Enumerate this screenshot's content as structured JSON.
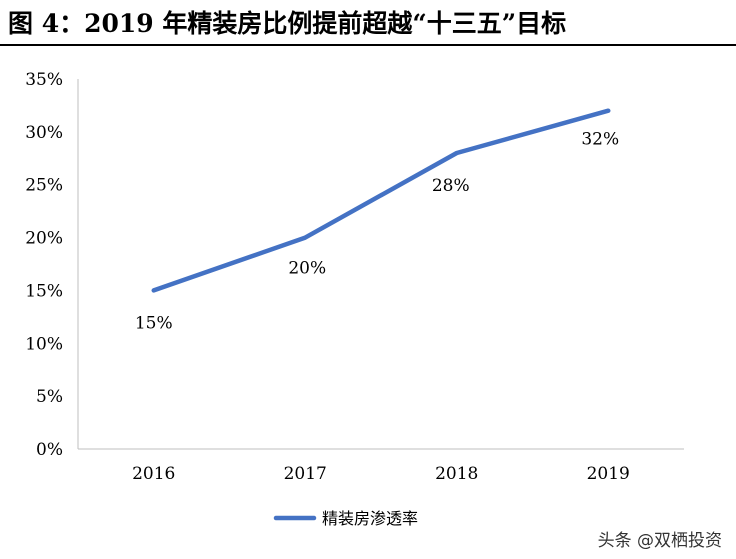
{
  "header": {
    "title": "图 4：2019 年精装房比例提前超越“十三五”目标"
  },
  "chart_data": {
    "type": "line",
    "categories": [
      "2016",
      "2017",
      "2018",
      "2019"
    ],
    "series": [
      {
        "name": "精装房渗透率",
        "values": [
          15,
          20,
          28,
          32
        ],
        "color": "#4472C4"
      }
    ],
    "data_labels": [
      "15%",
      "20%",
      "28%",
      "32%"
    ],
    "ylim": [
      0,
      35
    ],
    "yticks": [
      0,
      5,
      10,
      15,
      20,
      25,
      30,
      35
    ],
    "ytick_labels": [
      "0%",
      "5%",
      "10%",
      "15%",
      "20%",
      "25%",
      "30%",
      "35%"
    ],
    "legend_position": "bottom-left",
    "grid": false
  },
  "watermark": {
    "text": "头条 @双栖投资"
  }
}
